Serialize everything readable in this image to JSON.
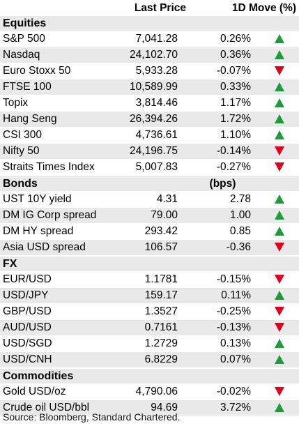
{
  "header": {
    "col_price": "Last Price",
    "col_move": "1D Move (%)"
  },
  "sections": [
    {
      "title": "Equities",
      "unit": "",
      "rows": [
        {
          "name": "S&P 500",
          "price": "7,041.28",
          "move": "0.26%",
          "dir": "up"
        },
        {
          "name": "Nasdaq",
          "price": "24,102.70",
          "move": "0.36%",
          "dir": "up"
        },
        {
          "name": "Euro Stoxx 50",
          "price": "5,933.28",
          "move": "-0.07%",
          "dir": "down"
        },
        {
          "name": "FTSE 100",
          "price": "10,589.99",
          "move": "0.33%",
          "dir": "up"
        },
        {
          "name": "Topix",
          "price": "3,814.46",
          "move": "1.17%",
          "dir": "up"
        },
        {
          "name": "Hang Seng",
          "price": "26,394.26",
          "move": "1.72%",
          "dir": "up"
        },
        {
          "name": "CSI 300",
          "price": "4,736.61",
          "move": "1.10%",
          "dir": "up"
        },
        {
          "name": "Nifty 50",
          "price": "24,196.75",
          "move": "-0.14%",
          "dir": "down"
        },
        {
          "name": "Straits Times Index",
          "price": "5,007.83",
          "move": "-0.27%",
          "dir": "down"
        }
      ]
    },
    {
      "title": "Bonds",
      "unit": "(bps)",
      "rows": [
        {
          "name": "UST 10Y yield",
          "price": "4.31",
          "move": "2.78",
          "dir": "up"
        },
        {
          "name": "DM IG Corp spread",
          "price": "79.00",
          "move": "1.00",
          "dir": "up"
        },
        {
          "name": "DM HY spread",
          "price": "293.42",
          "move": "0.85",
          "dir": "up"
        },
        {
          "name": "Asia USD spread",
          "price": "106.57",
          "move": "-0.36",
          "dir": "down"
        }
      ]
    },
    {
      "title": "FX",
      "unit": "",
      "rows": [
        {
          "name": "EUR/USD",
          "price": "1.1781",
          "move": "-0.15%",
          "dir": "down"
        },
        {
          "name": "USD/JPY",
          "price": "159.17",
          "move": "0.11%",
          "dir": "up"
        },
        {
          "name": "GBP/USD",
          "price": "1.3527",
          "move": "-0.25%",
          "dir": "down"
        },
        {
          "name": "AUD/USD",
          "price": "0.7161",
          "move": "-0.13%",
          "dir": "down"
        },
        {
          "name": "USD/SGD",
          "price": "1.2729",
          "move": "0.13%",
          "dir": "up"
        },
        {
          "name": "USD/CNH",
          "price": "6.8229",
          "move": "0.07%",
          "dir": "up"
        }
      ]
    },
    {
      "title": "Commodities",
      "unit": "",
      "rows": [
        {
          "name": "Gold USD/oz",
          "price": "4,790.06",
          "move": "-0.02%",
          "dir": "down"
        },
        {
          "name": "Crude oil USD/bbl",
          "price": "94.69",
          "move": "3.72%",
          "dir": "up"
        }
      ]
    }
  ],
  "source": "Source: Bloomberg, Standard Chartered.",
  "colors": {
    "up": "#1e9b3a",
    "down": "#e0001a",
    "shade": "#e9e9e9"
  }
}
